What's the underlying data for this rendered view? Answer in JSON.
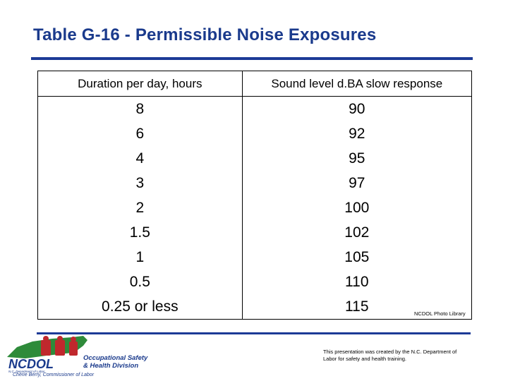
{
  "title": "Table G-16 - Permissible Noise Exposures",
  "table": {
    "headers": [
      "Duration per day, hours",
      "Sound level d.BA slow response"
    ],
    "rows": [
      [
        "8",
        "90"
      ],
      [
        "6",
        "92"
      ],
      [
        "4",
        "95"
      ],
      [
        "3",
        "97"
      ],
      [
        "2",
        "100"
      ],
      [
        "1.5",
        "102"
      ],
      [
        "1",
        "105"
      ],
      [
        "0.5",
        "110"
      ],
      [
        "0.25 or less",
        "115"
      ]
    ]
  },
  "photo_credit": "NCDOL Photo Library",
  "footer_note": "This presentation was created by the N.C. Department of Labor for safety and health training.",
  "logo": {
    "name": "NCDOL",
    "dept": "N.C. Department of Labor",
    "division_line1": "Occupational Safety",
    "division_line2": "& Health Division",
    "commissioner": "Cherie Berry, Commissioner of Labor"
  },
  "colors": {
    "accent": "#1c3a96",
    "title": "#1a3a8c",
    "state_green": "#2e8b3a",
    "logo_red": "#c0282d"
  }
}
